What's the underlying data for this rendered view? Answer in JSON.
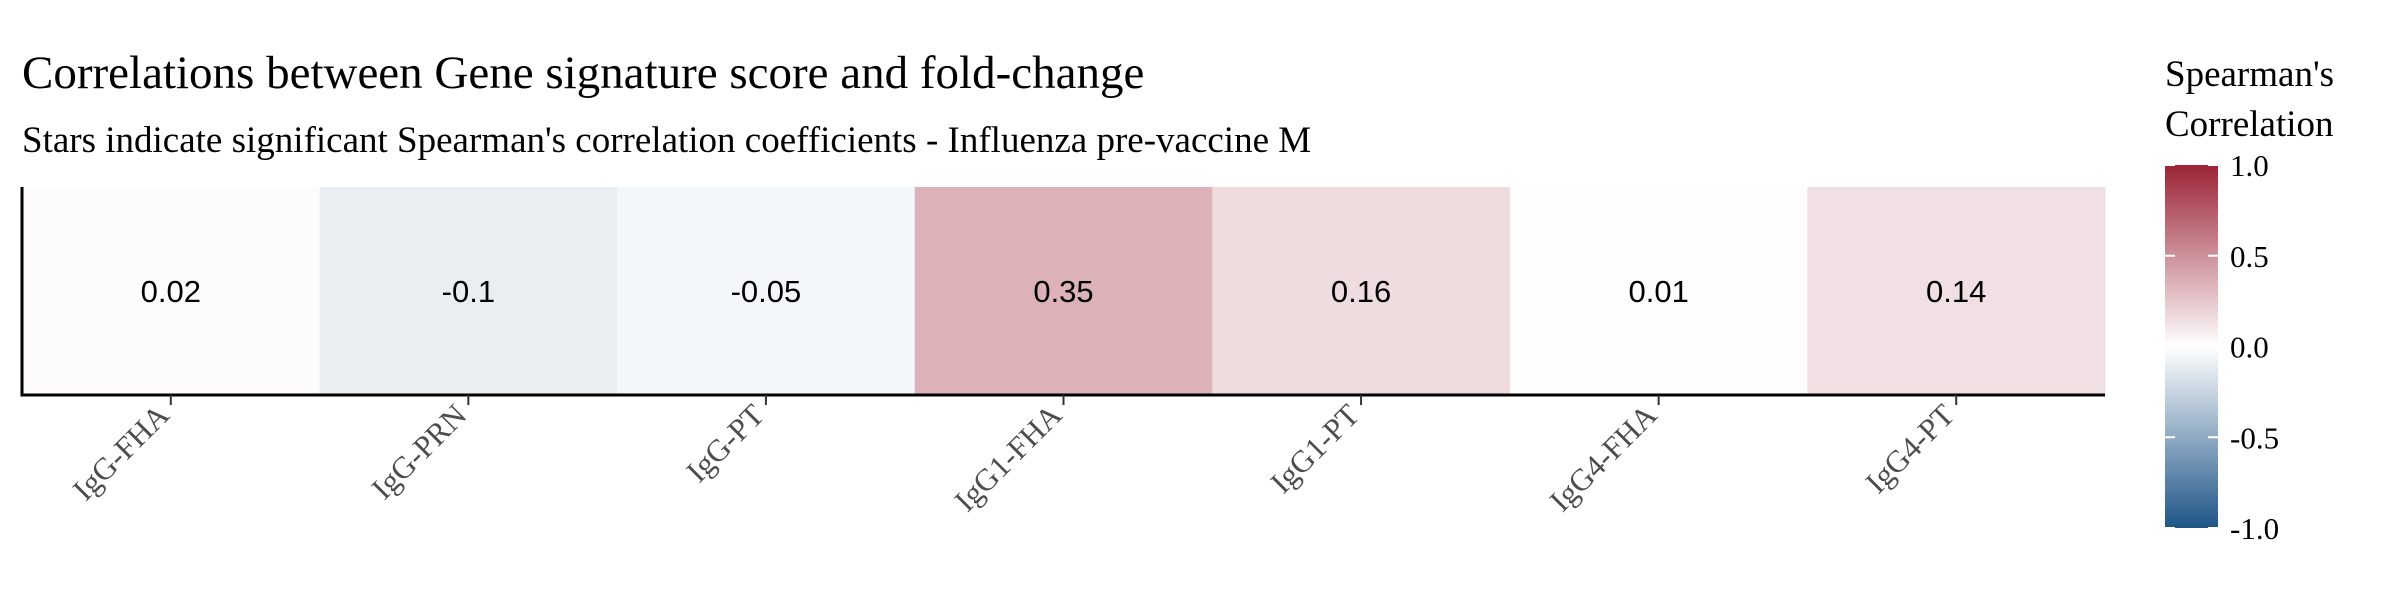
{
  "chart_data": {
    "type": "heatmap",
    "title": "Correlations between Gene signature score and fold-change",
    "subtitle": "Stars indicate significant Spearman's correlation coefficients - Influenza pre-vaccine M",
    "categories": [
      "IgG-FHA",
      "IgG-PRN",
      "IgG-PT",
      "IgG1-FHA",
      "IgG1-PT",
      "IgG4-FHA",
      "IgG4-PT"
    ],
    "values": [
      0.02,
      -0.1,
      -0.05,
      0.35,
      0.16,
      0.01,
      0.14
    ],
    "value_labels": [
      "0.02",
      "-0.1",
      "-0.05",
      "0.35",
      "0.16",
      "0.01",
      "0.14"
    ],
    "legend": {
      "title_lines": [
        "Spearman's",
        "Correlation"
      ],
      "range": [
        -1.0,
        1.0
      ],
      "ticks": [
        1.0,
        0.5,
        0.0,
        -0.5,
        -1.0
      ],
      "tick_labels": [
        "1.0",
        "0.5",
        "0.0",
        "-0.5",
        "-1.0"
      ],
      "placement": "right"
    },
    "colors": {
      "low": "#1f5587",
      "mid": "#ffffff",
      "high": "#9b2335"
    },
    "grid": false
  }
}
